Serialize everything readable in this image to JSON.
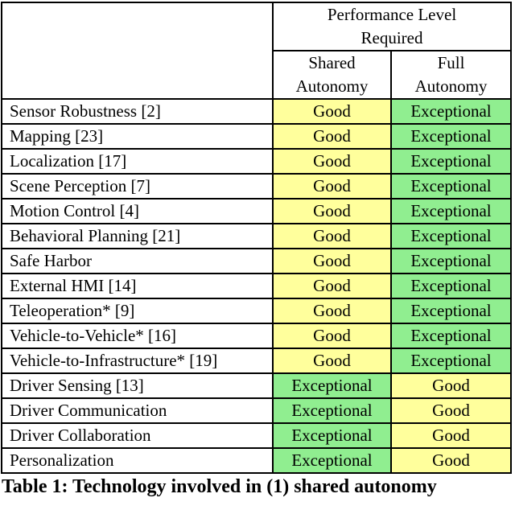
{
  "table": {
    "header": {
      "performance_line1": "Performance Level",
      "performance_line2": "Required",
      "shared_line1": "Shared",
      "shared_line2": "Autonomy",
      "full_line1": "Full",
      "full_line2": "Autonomy"
    },
    "rows": [
      {
        "technology": "Sensor Robustness [2]",
        "shared": "Good",
        "full": "Exceptional"
      },
      {
        "technology": "Mapping [23]",
        "shared": "Good",
        "full": "Exceptional"
      },
      {
        "technology": "Localization [17]",
        "shared": "Good",
        "full": "Exceptional"
      },
      {
        "technology": "Scene Perception [7]",
        "shared": "Good",
        "full": "Exceptional"
      },
      {
        "technology": "Motion Control [4]",
        "shared": "Good",
        "full": "Exceptional"
      },
      {
        "technology": "Behavioral Planning [21]",
        "shared": "Good",
        "full": "Exceptional"
      },
      {
        "technology": "Safe Harbor",
        "shared": "Good",
        "full": "Exceptional"
      },
      {
        "technology": "External HMI [14]",
        "shared": "Good",
        "full": "Exceptional"
      },
      {
        "technology": "Teleoperation* [9]",
        "shared": "Good",
        "full": "Exceptional"
      },
      {
        "technology": "Vehicle-to-Vehicle* [16]",
        "shared": "Good",
        "full": "Exceptional"
      },
      {
        "technology": "Vehicle-to-Infrastructure* [19]",
        "shared": "Good",
        "full": "Exceptional"
      },
      {
        "technology": "Driver Sensing [13]",
        "shared": "Exceptional",
        "full": "Good"
      },
      {
        "technology": "Driver Communication",
        "shared": "Exceptional",
        "full": "Good"
      },
      {
        "technology": "Driver Collaboration",
        "shared": "Exceptional",
        "full": "Good"
      },
      {
        "technology": "Personalization",
        "shared": "Exceptional",
        "full": "Good"
      }
    ]
  },
  "colors": {
    "Good": "#FFFF9C",
    "Exceptional": "#90EE90",
    "border": "#000000"
  },
  "caption": "Table 1: Technology involved in (1) shared autonomy"
}
